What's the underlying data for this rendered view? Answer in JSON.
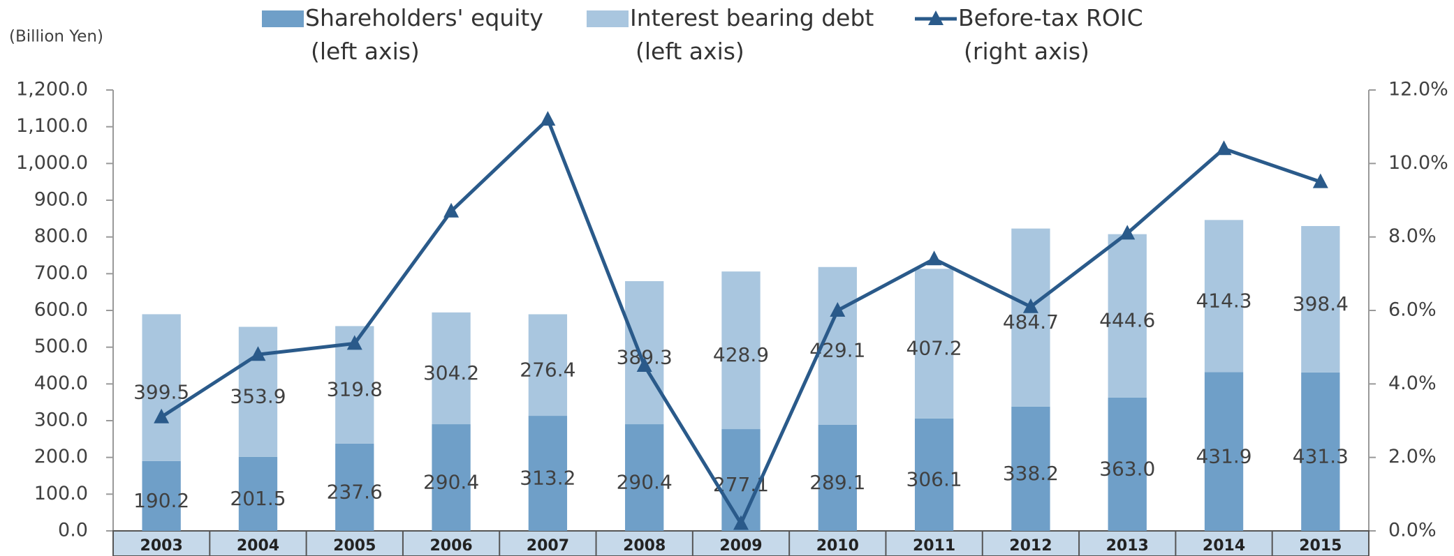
{
  "chart_data": {
    "type": "bar",
    "stacked": true,
    "unit_label": "(Billion Yen)",
    "categories": [
      "2003",
      "2004",
      "2005",
      "2006",
      "2007",
      "2008",
      "2009",
      "2010",
      "2011",
      "2012",
      "2013",
      "2014",
      "2015"
    ],
    "series": [
      {
        "name": "Shareholders' equity\n(left axis)",
        "type": "bar",
        "color": "#6f9fc8",
        "values": [
          190.2,
          201.5,
          237.6,
          290.4,
          313.2,
          290.4,
          277.1,
          289.1,
          306.1,
          338.2,
          363.0,
          431.9,
          431.3
        ],
        "value_labels": [
          "190.2",
          "201.5",
          "237.6",
          "290.4",
          "313.2",
          "290.4",
          "277.1",
          "289.1",
          "306.1",
          "338.2",
          "363.0",
          "431.9",
          "431.3"
        ]
      },
      {
        "name": "Interest bearing debt\n(left axis)",
        "type": "bar",
        "color": "#a9c6df",
        "values": [
          399.5,
          353.9,
          319.8,
          304.2,
          276.4,
          389.3,
          428.9,
          429.1,
          407.2,
          484.7,
          444.6,
          414.3,
          398.4
        ]
      },
      {
        "name": "Before-tax ROIC\n(right axis)",
        "type": "line",
        "axis": "y2",
        "color": "#2a5a8a",
        "values": [
          3.1,
          4.8,
          5.1,
          8.7,
          11.2,
          4.5,
          0.2,
          6.0,
          7.4,
          6.1,
          8.1,
          10.4,
          9.5
        ]
      }
    ],
    "ylim": [
      0,
      1200
    ],
    "yticks": [
      {
        "value": 0,
        "label": "0.0"
      },
      {
        "value": 100,
        "label": "100.0"
      },
      {
        "value": 200,
        "label": "200.0"
      },
      {
        "value": 300,
        "label": "300.0"
      },
      {
        "value": 400,
        "label": "400.0"
      },
      {
        "value": 500,
        "label": "500.0"
      },
      {
        "value": 600,
        "label": "600.0"
      },
      {
        "value": 700,
        "label": "700.0"
      },
      {
        "value": 800,
        "label": "800.0"
      },
      {
        "value": 900,
        "label": "900.0"
      },
      {
        "value": 1000,
        "label": "1,000.0"
      },
      {
        "value": 1100,
        "label": "1,100.0"
      },
      {
        "value": 1200,
        "label": "1,200.0"
      }
    ],
    "y2lim": [
      0,
      12
    ],
    "y2ticks": [
      {
        "value": 0,
        "label": "0.0%"
      },
      {
        "value": 2,
        "label": "2.0%"
      },
      {
        "value": 4,
        "label": "4.0%"
      },
      {
        "value": 6,
        "label": "6.0%"
      },
      {
        "value": 8,
        "label": "8.0%"
      },
      {
        "value": 10,
        "label": "10.0%"
      },
      {
        "value": 12,
        "label": "12.0%"
      }
    ],
    "legend": "top",
    "grid": false
  }
}
